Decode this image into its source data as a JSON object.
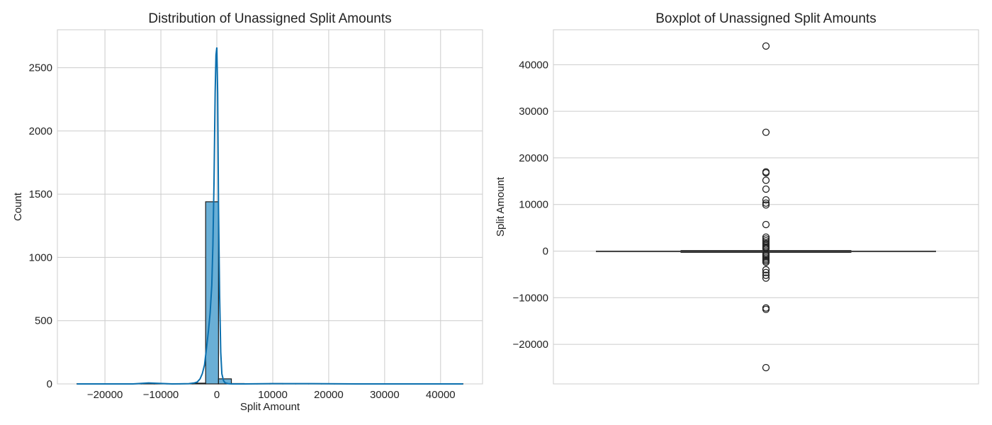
{
  "chart_data": [
    {
      "type": "histogram",
      "title": "Distribution of Unassigned Split Amounts",
      "xlabel": "Split Amount",
      "ylabel": "Count",
      "xlim": [
        -28500,
        47500
      ],
      "ylim": [
        0,
        2800
      ],
      "xticks": [
        -20000,
        -10000,
        0,
        10000,
        20000,
        30000,
        40000
      ],
      "yticks": [
        0,
        500,
        1000,
        1500,
        2000,
        2500
      ],
      "grid": true,
      "bins": [
        {
          "x0": -25000,
          "x1": -22700,
          "count": 1
        },
        {
          "x0": -22700,
          "x1": -20400,
          "count": 0
        },
        {
          "x0": -20400,
          "x1": -18100,
          "count": 0
        },
        {
          "x0": -18100,
          "x1": -15800,
          "count": 0
        },
        {
          "x0": -15800,
          "x1": -13500,
          "count": 0
        },
        {
          "x0": -13500,
          "x1": -11200,
          "count": 2
        },
        {
          "x0": -11200,
          "x1": -8900,
          "count": 0
        },
        {
          "x0": -8900,
          "x1": -6600,
          "count": 0
        },
        {
          "x0": -6600,
          "x1": -4300,
          "count": 2
        },
        {
          "x0": -4300,
          "x1": -2000,
          "count": 6
        },
        {
          "x0": -2000,
          "x1": 300,
          "count": 1440
        },
        {
          "x0": 300,
          "x1": 2600,
          "count": 40
        },
        {
          "x0": 2600,
          "x1": 4900,
          "count": 3
        },
        {
          "x0": 4900,
          "x1": 7200,
          "count": 1
        },
        {
          "x0": 7200,
          "x1": 9500,
          "count": 0
        },
        {
          "x0": 9500,
          "x1": 11800,
          "count": 3
        },
        {
          "x0": 11800,
          "x1": 14100,
          "count": 1
        },
        {
          "x0": 14100,
          "x1": 16400,
          "count": 1
        },
        {
          "x0": 16400,
          "x1": 18700,
          "count": 2
        },
        {
          "x0": 18700,
          "x1": 21000,
          "count": 0
        },
        {
          "x0": 21000,
          "x1": 23300,
          "count": 0
        },
        {
          "x0": 23300,
          "x1": 25600,
          "count": 1
        },
        {
          "x0": 25600,
          "x1": 27900,
          "count": 0
        },
        {
          "x0": 27900,
          "x1": 30200,
          "count": 0
        },
        {
          "x0": 30200,
          "x1": 32500,
          "count": 0
        },
        {
          "x0": 32500,
          "x1": 34800,
          "count": 0
        },
        {
          "x0": 34800,
          "x1": 37100,
          "count": 0
        },
        {
          "x0": 37100,
          "x1": 39400,
          "count": 0
        },
        {
          "x0": 39400,
          "x1": 41700,
          "count": 0
        },
        {
          "x0": 41700,
          "x1": 44000,
          "count": 1
        }
      ],
      "kde": {
        "x": [
          -25000,
          -15000,
          -12200,
          -8000,
          -5000,
          -4000,
          -3500,
          -3000,
          -2600,
          -2200,
          -1800,
          -1500,
          -1200,
          -900,
          -700,
          -500,
          -300,
          -150,
          0,
          150,
          300,
          500,
          700,
          900,
          1200,
          1500,
          2000,
          2600,
          5000,
          10000,
          17000,
          25000,
          44000
        ],
        "y": [
          0,
          0,
          8,
          0,
          2,
          8,
          15,
          40,
          80,
          150,
          300,
          420,
          560,
          780,
          1100,
          1600,
          2300,
          2600,
          2660,
          2300,
          1400,
          700,
          250,
          80,
          25,
          8,
          2,
          0,
          0,
          2,
          2,
          0,
          0
        ]
      },
      "colors": {
        "bar": "#6aafd6",
        "kde": "#0a6fae"
      }
    },
    {
      "type": "boxplot",
      "title": "Boxplot of Unassigned Split Amounts",
      "ylabel": "Split Amount",
      "ylim": [
        -28500,
        47500
      ],
      "yticks": [
        -20000,
        -10000,
        0,
        10000,
        20000,
        30000,
        40000
      ],
      "grid": true,
      "box": {
        "q1": -200,
        "median": -50,
        "q3": 150,
        "whisker_low": -500,
        "whisker_high": 400
      },
      "outliers": [
        44000,
        25500,
        17000,
        16800,
        15200,
        13300,
        11000,
        10300,
        9900,
        5700,
        3000,
        2600,
        2200,
        1800,
        1500,
        1200,
        900,
        700,
        500,
        -600,
        -900,
        -1200,
        -1500,
        -1800,
        -2100,
        -2400,
        -4000,
        -4600,
        -5200,
        -5800,
        -12200,
        -12500,
        -25000
      ],
      "colors": {
        "box": "#3a3a3a"
      }
    }
  ]
}
